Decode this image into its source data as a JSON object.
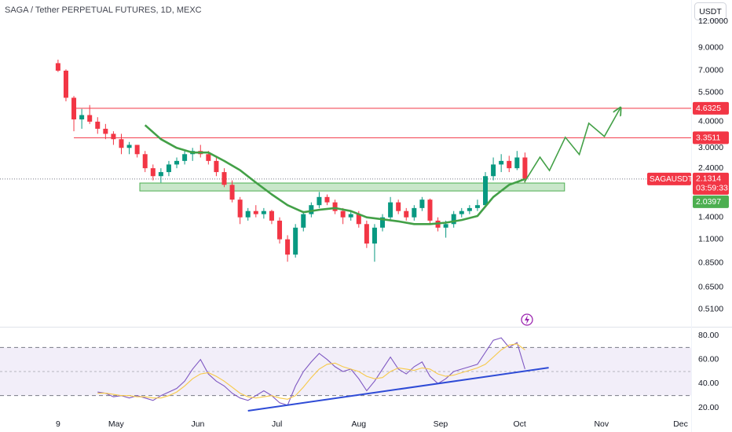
{
  "chart_data": [
    {
      "type": "candlestick",
      "title": "SAGA / Tether PERPETUAL FUTURES, 1D, MEXC",
      "currency_button": "USDT",
      "log_scale": true,
      "grid": false,
      "up_color": "#089981",
      "down_color": "#f23645",
      "xlim": [
        -22,
        240
      ],
      "xticks": [
        {
          "value": 0,
          "label": "9"
        },
        {
          "value": 22,
          "label": "May"
        },
        {
          "value": 53,
          "label": "Jun"
        },
        {
          "value": 83,
          "label": "Jul"
        },
        {
          "value": 114,
          "label": "Aug"
        },
        {
          "value": 145,
          "label": "Sep"
        },
        {
          "value": 175,
          "label": "Oct"
        },
        {
          "value": 206,
          "label": "Nov"
        },
        {
          "value": 236,
          "label": "Dec"
        }
      ],
      "ylim": [
        0.425,
        15.2
      ],
      "yticks": [
        {
          "value": 12,
          "label": "12.0000"
        },
        {
          "value": 9,
          "label": "9.0000"
        },
        {
          "value": 7,
          "label": "7.0000"
        },
        {
          "value": 5.5,
          "label": "5.5000"
        },
        {
          "value": 4,
          "label": "4.0000"
        },
        {
          "value": 3,
          "label": "3.0000"
        },
        {
          "value": 2.4,
          "label": "2.4000"
        },
        {
          "value": 1.4,
          "label": "1.4000"
        },
        {
          "value": 1.1,
          "label": "1.1000"
        },
        {
          "value": 0.85,
          "label": "0.8500"
        },
        {
          "value": 0.65,
          "label": "0.6500"
        },
        {
          "value": 0.51,
          "label": "0.5100"
        }
      ],
      "x": [
        0,
        3,
        6,
        9,
        12,
        15,
        18,
        21,
        24,
        27,
        30,
        33,
        36,
        39,
        42,
        45,
        48,
        51,
        54,
        57,
        60,
        63,
        66,
        69,
        72,
        75,
        78,
        81,
        84,
        87,
        90,
        93,
        96,
        99,
        102,
        105,
        108,
        111,
        114,
        117,
        120,
        123,
        126,
        129,
        132,
        135,
        138,
        141,
        144,
        147,
        150,
        153,
        156,
        159,
        162,
        165,
        168,
        171,
        174,
        177
      ],
      "open": [
        7.6,
        7.0,
        5.2,
        4.1,
        4.3,
        4.0,
        3.7,
        3.5,
        3.3,
        3.0,
        3.1,
        2.8,
        2.4,
        2.2,
        2.3,
        2.5,
        2.6,
        2.8,
        2.9,
        2.8,
        2.6,
        2.3,
        2.0,
        1.7,
        1.4,
        1.5,
        1.45,
        1.5,
        1.35,
        1.1,
        0.93,
        1.25,
        1.45,
        1.6,
        1.75,
        1.65,
        1.5,
        1.4,
        1.45,
        1.3,
        1.05,
        1.25,
        1.4,
        1.65,
        1.5,
        1.4,
        1.55,
        1.7,
        1.35,
        1.25,
        1.3,
        1.45,
        1.5,
        1.55,
        1.6,
        2.2,
        2.5,
        2.6,
        2.4,
        2.7
      ],
      "high": [
        7.9,
        7.1,
        5.3,
        4.6,
        4.8,
        4.2,
        3.9,
        3.6,
        3.5,
        3.2,
        3.1,
        2.9,
        2.5,
        2.4,
        2.6,
        2.7,
        2.9,
        3.0,
        3.1,
        2.9,
        2.7,
        2.4,
        2.1,
        1.75,
        1.55,
        1.6,
        1.55,
        1.52,
        1.4,
        1.15,
        1.3,
        1.5,
        1.65,
        1.85,
        1.8,
        1.7,
        1.55,
        1.5,
        1.5,
        1.35,
        1.3,
        1.45,
        1.75,
        1.7,
        1.55,
        1.6,
        1.75,
        1.72,
        1.4,
        1.35,
        1.5,
        1.55,
        1.6,
        1.7,
        2.3,
        2.7,
        2.8,
        2.75,
        2.9,
        2.85
      ],
      "low": [
        6.9,
        5.0,
        3.6,
        3.7,
        3.9,
        3.5,
        3.3,
        3.1,
        2.8,
        2.8,
        2.7,
        2.3,
        2.1,
        2.05,
        2.2,
        2.4,
        2.5,
        2.6,
        2.7,
        2.5,
        2.2,
        1.95,
        1.65,
        1.3,
        1.35,
        1.4,
        1.38,
        1.3,
        1.05,
        0.86,
        0.9,
        1.2,
        1.4,
        1.55,
        1.6,
        1.45,
        1.3,
        1.35,
        1.25,
        1.0,
        0.86,
        1.2,
        1.35,
        1.45,
        1.35,
        1.35,
        1.5,
        1.3,
        1.2,
        1.12,
        1.25,
        1.4,
        1.45,
        1.5,
        1.58,
        2.1,
        2.3,
        2.3,
        2.35,
        2.05
      ],
      "close": [
        7.0,
        5.2,
        4.1,
        4.3,
        4.0,
        3.7,
        3.5,
        3.3,
        3.0,
        3.1,
        2.8,
        2.4,
        2.2,
        2.3,
        2.5,
        2.6,
        2.8,
        2.9,
        2.8,
        2.6,
        2.3,
        2.0,
        1.7,
        1.4,
        1.5,
        1.45,
        1.5,
        1.35,
        1.1,
        0.93,
        1.25,
        1.45,
        1.6,
        1.75,
        1.65,
        1.5,
        1.4,
        1.45,
        1.3,
        1.05,
        1.25,
        1.4,
        1.65,
        1.5,
        1.4,
        1.55,
        1.7,
        1.35,
        1.25,
        1.3,
        1.45,
        1.5,
        1.55,
        1.6,
        2.2,
        2.5,
        2.6,
        2.4,
        2.7,
        2.1314
      ],
      "moving_average": {
        "color": "#43a047",
        "x": [
          33,
          39,
          45,
          51,
          57,
          63,
          69,
          75,
          81,
          87,
          93,
          99,
          105,
          111,
          117,
          123,
          129,
          135,
          141,
          147,
          153,
          159,
          165,
          171,
          177
        ],
        "values": [
          3.85,
          3.3,
          3.0,
          2.85,
          2.85,
          2.6,
          2.35,
          2.05,
          1.8,
          1.6,
          1.48,
          1.52,
          1.55,
          1.5,
          1.4,
          1.37,
          1.34,
          1.3,
          1.3,
          1.32,
          1.36,
          1.42,
          1.75,
          2.0,
          2.13
        ]
      },
      "levels": [
        {
          "value": 4.6325,
          "color": "#f23645",
          "x_start": 6
        },
        {
          "value": 3.3511,
          "color": "#f23645",
          "x_start": 6
        }
      ],
      "zone": {
        "x": [
          31,
          192
        ],
        "low": 1.87,
        "high": 2.0397,
        "color": "#4caf50"
      },
      "projection": {
        "color": "#43a047",
        "x": [
          176.8,
          182.7,
          186.3,
          192.3,
          197.6,
          201.2,
          207.1,
          213.1
        ],
        "values": [
          2.06,
          2.71,
          2.34,
          3.37,
          2.79,
          3.93,
          3.4,
          4.63
        ]
      },
      "last_price": {
        "value": 2.1314,
        "symbol": "SAGAUSDT.P",
        "countdown": "03:59:33",
        "color": "#f23645"
      }
    },
    {
      "type": "line",
      "ylim": [
        11.5,
        85.9
      ],
      "yticks": [
        {
          "value": 80,
          "label": "80.00"
        },
        {
          "value": 60,
          "label": "60.00"
        },
        {
          "value": 40,
          "label": "40.00"
        },
        {
          "value": 20,
          "label": "20.00"
        }
      ],
      "bands": {
        "upper": 70,
        "middle": 50,
        "lower": 30,
        "fill": "#7e57c2"
      },
      "series": [
        {
          "color": "#7e57c2",
          "values": [
            null,
            null,
            null,
            null,
            null,
            33,
            32,
            29,
            30,
            28,
            30,
            28,
            26,
            30,
            33,
            36,
            42,
            52,
            60,
            48,
            42,
            38,
            32,
            28,
            26,
            30,
            34,
            30,
            24,
            22,
            38,
            50,
            58,
            65,
            60,
            54,
            50,
            52,
            44,
            34,
            42,
            52,
            62,
            52,
            48,
            54,
            58,
            46,
            40,
            44,
            50,
            52,
            54,
            56,
            66,
            76,
            78,
            70,
            74,
            52
          ]
        },
        {
          "color": "#f7c948",
          "values": [
            null,
            null,
            null,
            null,
            null,
            32,
            32,
            31,
            30,
            30,
            29,
            29,
            28,
            28,
            30,
            33,
            38,
            44,
            48,
            49,
            46,
            42,
            37,
            32,
            29,
            28,
            29,
            30,
            28,
            27,
            30,
            37,
            45,
            52,
            56,
            57,
            54,
            52,
            50,
            46,
            44,
            45,
            50,
            53,
            52,
            51,
            53,
            52,
            48,
            46,
            47,
            49,
            51,
            53,
            56,
            62,
            68,
            72,
            73,
            68
          ]
        }
      ],
      "trendline": {
        "color": "#2e4bd6",
        "x": [
          72,
          186
        ],
        "values": [
          17.4,
          53.2
        ]
      }
    }
  ]
}
